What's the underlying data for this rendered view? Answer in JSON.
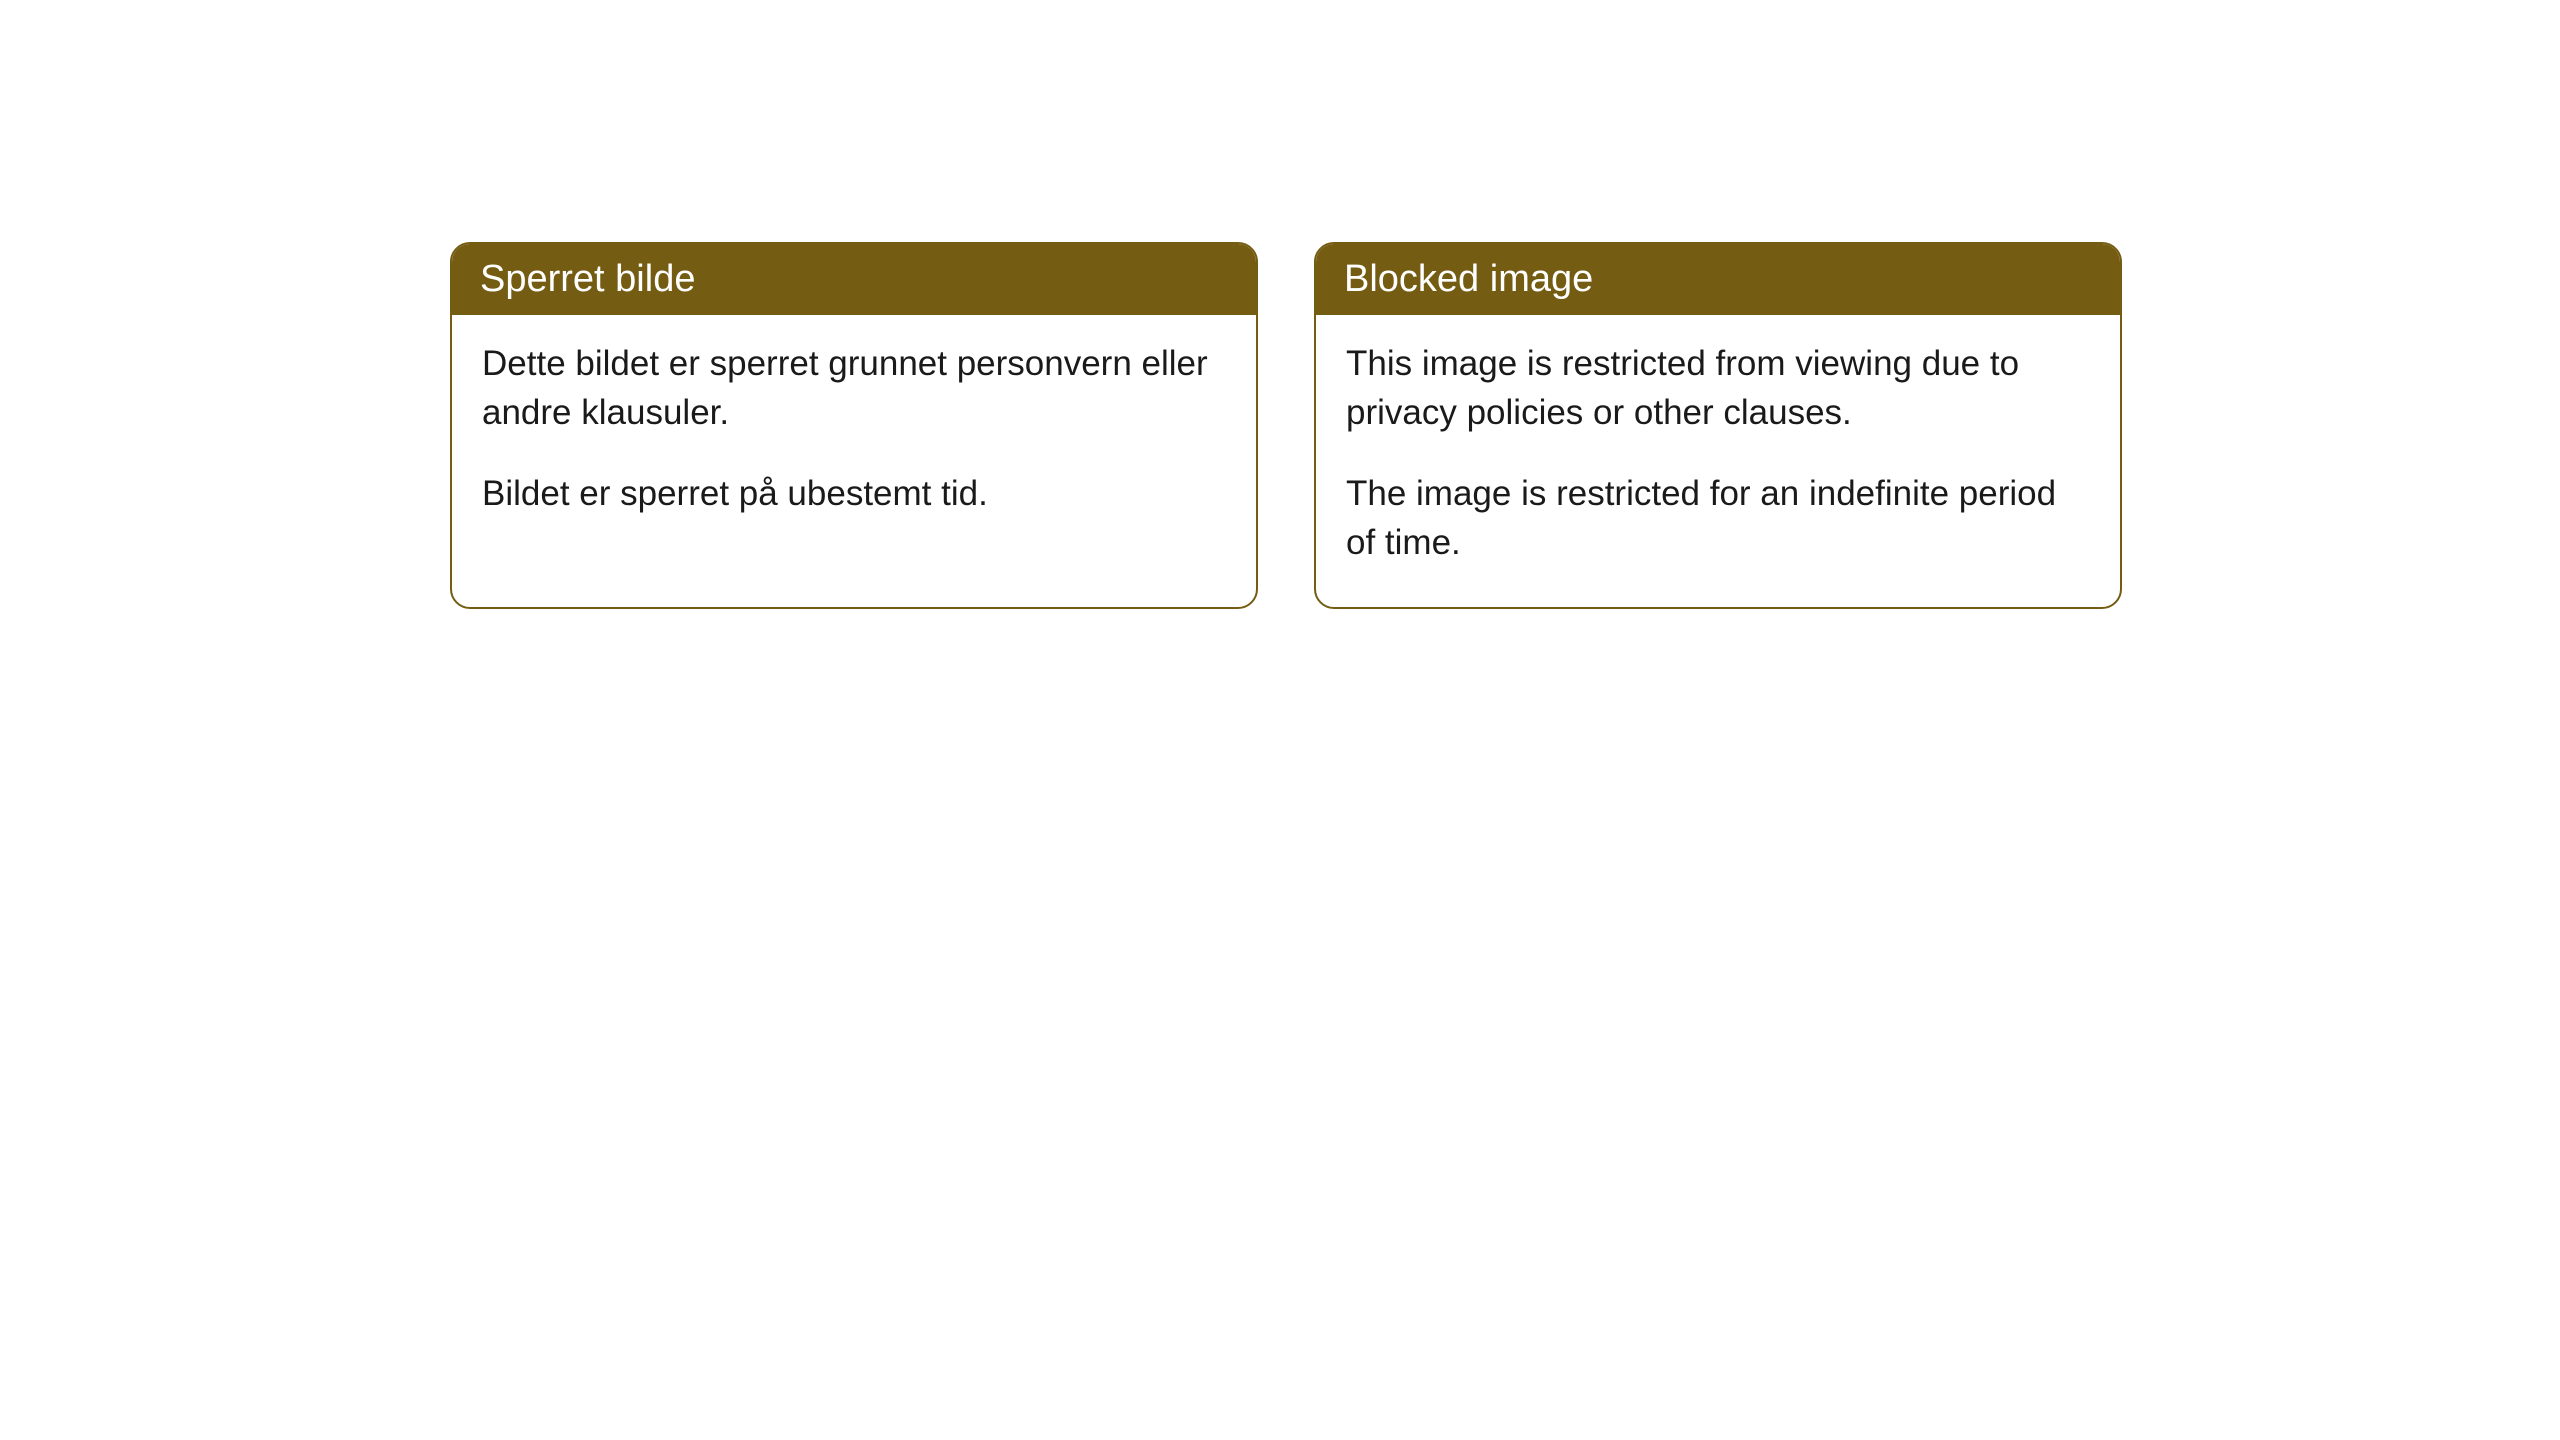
{
  "cards": [
    {
      "title": "Sperret bilde",
      "paragraph1": "Dette bildet er sperret grunnet personvern eller andre klausuler.",
      "paragraph2": "Bildet er sperret på ubestemt tid."
    },
    {
      "title": "Blocked image",
      "paragraph1": "This image is restricted from viewing due to privacy policies or other clauses.",
      "paragraph2": "The image is restricted for an indefinite period of time."
    }
  ],
  "styling": {
    "header_background": "#755c13",
    "header_text_color": "#ffffff",
    "border_color": "#755c13",
    "body_text_color": "#1a1a1a",
    "page_background": "#ffffff",
    "border_radius": 20,
    "title_fontsize": 38,
    "body_fontsize": 35
  }
}
